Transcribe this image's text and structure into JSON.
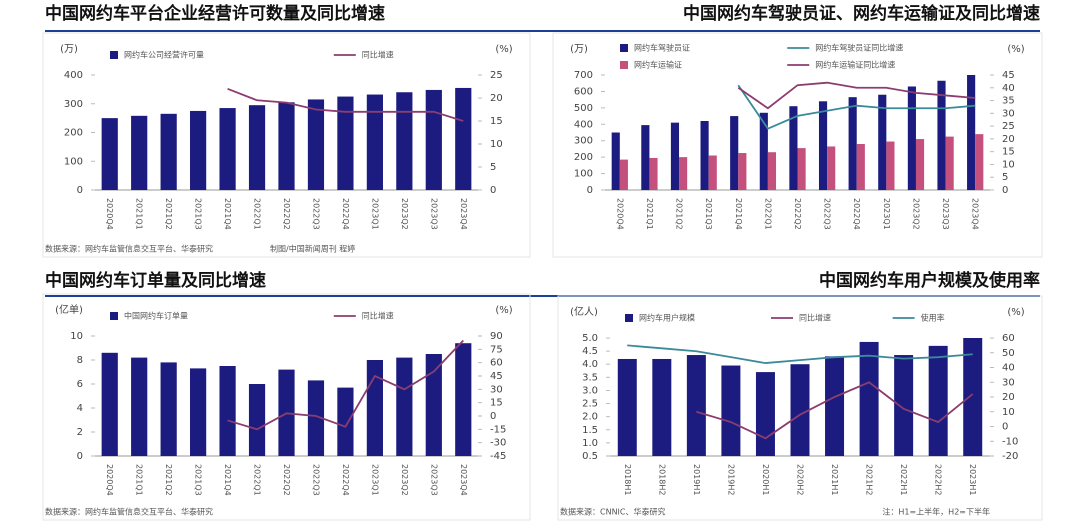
{
  "chart_data": [
    {
      "type": "combo",
      "title": "中国网约车平台企业经营许可数量及同比增速",
      "y_label": "(万)",
      "y2_label": "(%)",
      "categories": [
        "2020Q4",
        "2021Q1",
        "2021Q2",
        "2021Q3",
        "2021Q4",
        "2022Q1",
        "2022Q2",
        "2022Q3",
        "2022Q4",
        "2023Q1",
        "2023Q2",
        "2023Q3",
        "2023Q4"
      ],
      "series": [
        {
          "name": "网约车公司经营许可量",
          "type": "bar",
          "color": "#1c1c80",
          "values": [
            250,
            258,
            265,
            275,
            285,
            295,
            305,
            315,
            325,
            332,
            340,
            348,
            355
          ]
        },
        {
          "name": "同比增速",
          "type": "line",
          "axis": "y2",
          "color": "#8a3d6e",
          "values": [
            null,
            null,
            null,
            null,
            22,
            19.5,
            19,
            17.5,
            17,
            17,
            17,
            17,
            15
          ]
        }
      ],
      "ylim": [
        0,
        400
      ],
      "yticks": [
        0,
        100,
        200,
        300,
        400
      ],
      "y2lim": [
        0,
        25
      ],
      "y2ticks": [
        0,
        5,
        10,
        15,
        20,
        25
      ],
      "source": "数据来源：网约车监管信息交互平台、华泰研究",
      "credit": "制图/中国新闻周刊 程婷"
    },
    {
      "type": "combo",
      "title": "中国网约车驾驶员证、网约车运输证及同比增速",
      "y_label": "(万)",
      "y2_label": "(%)",
      "categories": [
        "2020Q4",
        "2021Q1",
        "2021Q2",
        "2021Q3",
        "2021Q4",
        "2022Q1",
        "2022Q2",
        "2022Q3",
        "2022Q4",
        "2023Q1",
        "2023Q2",
        "2023Q3",
        "2023Q4"
      ],
      "series": [
        {
          "name": "网约车驾驶员证",
          "type": "bar",
          "color": "#1c1c80",
          "values": [
            350,
            395,
            410,
            420,
            450,
            470,
            510,
            540,
            565,
            580,
            630,
            665,
            700
          ]
        },
        {
          "name": "网约车驾驶员证同比增速",
          "type": "line",
          "axis": "y2",
          "color": "#3a8a9a",
          "values": [
            null,
            null,
            null,
            null,
            41,
            24,
            29,
            31,
            33,
            32,
            32,
            32,
            33
          ]
        },
        {
          "name": "网约车运输证",
          "type": "bar",
          "color": "#c4507e",
          "values": [
            185,
            195,
            200,
            210,
            225,
            230,
            255,
            265,
            280,
            295,
            310,
            325,
            340
          ]
        },
        {
          "name": "网约车运输证同比增速",
          "type": "line",
          "axis": "y2",
          "color": "#8a3d6e",
          "values": [
            null,
            null,
            null,
            null,
            40,
            32,
            41,
            42,
            40,
            40,
            38,
            37,
            36
          ]
        }
      ],
      "ylim": [
        0,
        700
      ],
      "yticks": [
        0,
        100,
        200,
        300,
        400,
        500,
        600,
        700
      ],
      "y2lim": [
        0,
        45
      ],
      "y2ticks": [
        0,
        5,
        10,
        15,
        20,
        25,
        30,
        35,
        40,
        45
      ]
    },
    {
      "type": "combo",
      "title": "中国网约车订单量及同比增速",
      "y_label": "(亿单)",
      "y2_label": "(%)",
      "categories": [
        "2020Q4",
        "2021Q1",
        "2021Q2",
        "2021Q3",
        "2021Q4",
        "2022Q1",
        "2022Q2",
        "2022Q3",
        "2022Q4",
        "2023Q1",
        "2023Q2",
        "2023Q3",
        "2023Q4"
      ],
      "series": [
        {
          "name": "中国网约车订单量",
          "type": "bar",
          "color": "#1c1c80",
          "values": [
            8.6,
            8.2,
            7.8,
            7.3,
            7.5,
            6.0,
            7.2,
            6.3,
            5.7,
            8.0,
            8.2,
            8.5,
            9.4
          ]
        },
        {
          "name": "同比增速",
          "type": "line",
          "axis": "y2",
          "color": "#8a3d6e",
          "values": [
            null,
            null,
            null,
            null,
            -5,
            -15,
            3,
            0,
            -12,
            45,
            30,
            50,
            85
          ]
        }
      ],
      "ylim": [
        0,
        10
      ],
      "yticks": [
        0,
        2,
        4,
        6,
        8,
        10
      ],
      "y2lim": [
        -45,
        90
      ],
      "y2ticks": [
        -45,
        -30,
        -15,
        0,
        15,
        30,
        45,
        60,
        75,
        90
      ],
      "source": "数据来源：网约车监管信息交互平台、华泰研究"
    },
    {
      "type": "combo",
      "title": "中国网约车用户规模及使用率",
      "y_label": "(亿人)",
      "y2_label": "(%)",
      "categories": [
        "2018H1",
        "2018H2",
        "2019H1",
        "2019H2",
        "2020H1",
        "2020H2",
        "2021H1",
        "2021H2",
        "2022H1",
        "2022H2",
        "2023H1"
      ],
      "series": [
        {
          "name": "网约车用户规模",
          "type": "bar",
          "color": "#1c1c80",
          "values": [
            4.2,
            4.2,
            4.35,
            3.95,
            3.7,
            4.0,
            4.3,
            4.85,
            4.35,
            4.7,
            5.0
          ]
        },
        {
          "name": "同比增速",
          "type": "line",
          "axis": "y2",
          "color": "#8a3d6e",
          "values": [
            null,
            null,
            10,
            3,
            -8,
            8,
            20,
            30,
            12,
            3,
            22
          ]
        },
        {
          "name": "使用率",
          "type": "line",
          "axis": "y2",
          "color": "#3a8a9a",
          "values": [
            55,
            53,
            51,
            47,
            43,
            45,
            47,
            48,
            46,
            47,
            49
          ]
        }
      ],
      "ylim": [
        0.5,
        5
      ],
      "yticks": [
        0.5,
        {
          "value": 1,
          "label": "1.0"
        },
        1.5,
        {
          "value": 2,
          "label": "2.0"
        },
        2.5,
        {
          "value": 3,
          "label": "3.0"
        },
        3.5,
        {
          "value": 4,
          "label": "4.0"
        },
        4.5,
        {
          "value": 5,
          "label": "5.0"
        }
      ],
      "y2lim": [
        -20,
        60
      ],
      "y2ticks": [
        -20,
        -10,
        0,
        10,
        20,
        30,
        40,
        50,
        60
      ],
      "source": "数据来源：CNNIC、华泰研究",
      "note": "注：H1=上半年，H2=下半年"
    }
  ]
}
